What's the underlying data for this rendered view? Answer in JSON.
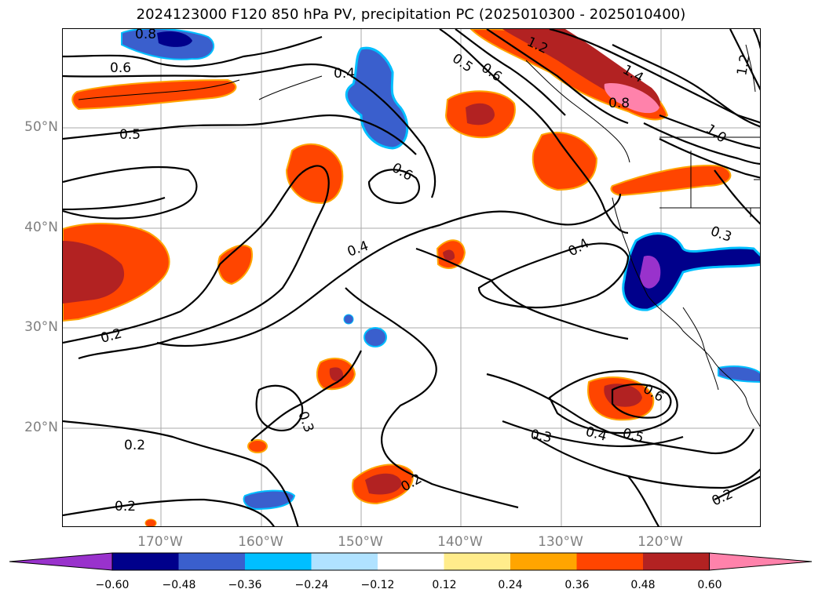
{
  "title": "2024123000 F120 850 hPa PV, precipitation PC (2025010300 - 2025010400)",
  "lat_labels": [
    "50°N",
    "40°N",
    "30°N",
    "20°N"
  ],
  "lon_labels": [
    "170°W",
    "160°W",
    "150°W",
    "140°W",
    "130°W",
    "120°W"
  ],
  "contour_labels": [
    {
      "text": "0.8",
      "id": "c1"
    },
    {
      "text": "0.6",
      "id": "c2"
    },
    {
      "text": "0.4",
      "id": "c3"
    },
    {
      "text": "0.5",
      "id": "c4"
    },
    {
      "text": "0.6",
      "id": "c5"
    },
    {
      "text": "0.4",
      "id": "c6"
    },
    {
      "text": "0.2",
      "id": "c7"
    },
    {
      "text": "0.3",
      "id": "c8"
    },
    {
      "text": "0.2",
      "id": "c9"
    },
    {
      "text": "0.2",
      "id": "c10"
    },
    {
      "text": "0.2",
      "id": "c11"
    },
    {
      "text": "0.3",
      "id": "c12"
    },
    {
      "text": "0.4",
      "id": "c13"
    },
    {
      "text": "0.5",
      "id": "c14"
    },
    {
      "text": "0.6",
      "id": "c15"
    },
    {
      "text": "0.4",
      "id": "c16"
    },
    {
      "text": "0.3",
      "id": "c17"
    },
    {
      "text": "0.2",
      "id": "c18"
    },
    {
      "text": "0.5",
      "id": "c19"
    },
    {
      "text": "0.6",
      "id": "c20"
    },
    {
      "text": "1.2",
      "id": "c21"
    },
    {
      "text": "1.4",
      "id": "c22"
    },
    {
      "text": "0.8",
      "id": "c23"
    },
    {
      "text": "1.0",
      "id": "c24"
    },
    {
      "text": "1.2",
      "id": "c25"
    }
  ],
  "colorbar": {
    "colors": [
      "#9932cc",
      "#00008b",
      "#3a5fcd",
      "#00bfff",
      "#b0e2ff",
      "#ffffff",
      "#ffec8b",
      "#ffa500",
      "#ff4500",
      "#b22222",
      "#ff82ab"
    ],
    "ticks": [
      "−0.60",
      "−0.48",
      "−0.36",
      "−0.24",
      "−0.12",
      "0.12",
      "0.24",
      "0.36",
      "0.48",
      "0.60"
    ]
  }
}
